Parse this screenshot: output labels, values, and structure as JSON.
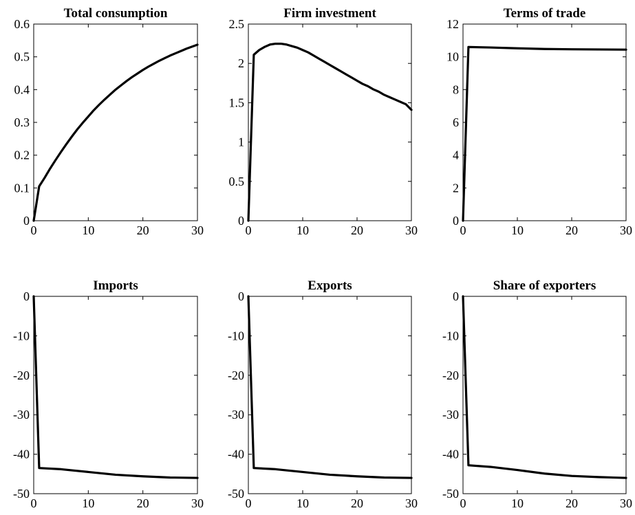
{
  "chart_data": [
    {
      "type": "line",
      "title": "Total consumption",
      "xlabel": "",
      "ylabel": "",
      "xlim": [
        0,
        30
      ],
      "ylim": [
        0,
        0.6
      ],
      "xticks": [
        0,
        10,
        20,
        30
      ],
      "yticks": [
        0,
        0.1,
        0.2,
        0.3,
        0.4,
        0.5,
        0.6
      ],
      "series": [
        {
          "x": [
            0,
            1,
            2,
            3,
            4,
            5,
            6,
            7,
            8,
            9,
            10,
            11,
            12,
            13,
            14,
            15,
            16,
            17,
            18,
            19,
            20,
            21,
            22,
            23,
            24,
            25,
            26,
            27,
            28,
            29,
            30
          ],
          "values": [
            0,
            0.105,
            0.131,
            0.159,
            0.185,
            0.21,
            0.234,
            0.257,
            0.279,
            0.299,
            0.318,
            0.337,
            0.354,
            0.37,
            0.385,
            0.4,
            0.413,
            0.426,
            0.438,
            0.449,
            0.46,
            0.47,
            0.479,
            0.488,
            0.496,
            0.504,
            0.511,
            0.518,
            0.525,
            0.531,
            0.537
          ]
        }
      ]
    },
    {
      "type": "line",
      "title": "Firm investment",
      "xlabel": "",
      "ylabel": "",
      "xlim": [
        0,
        30
      ],
      "ylim": [
        0,
        2.5
      ],
      "xticks": [
        0,
        10,
        20,
        30
      ],
      "yticks": [
        0,
        0.5,
        1,
        1.5,
        2,
        2.5
      ],
      "series": [
        {
          "x": [
            0,
            1,
            2,
            3,
            4,
            5,
            6,
            7,
            8,
            9,
            10,
            11,
            12,
            13,
            14,
            15,
            16,
            17,
            18,
            19,
            20,
            21,
            22,
            23,
            24,
            25,
            26,
            27,
            28,
            29,
            30
          ],
          "values": [
            0,
            2.11,
            2.17,
            2.21,
            2.24,
            2.25,
            2.25,
            2.24,
            2.22,
            2.2,
            2.17,
            2.14,
            2.1,
            2.06,
            2.02,
            1.98,
            1.94,
            1.9,
            1.86,
            1.82,
            1.78,
            1.74,
            1.71,
            1.67,
            1.64,
            1.6,
            1.57,
            1.54,
            1.51,
            1.48,
            1.41
          ]
        }
      ]
    },
    {
      "type": "line",
      "title": "Terms of trade",
      "xlabel": "",
      "ylabel": "",
      "xlim": [
        0,
        30
      ],
      "ylim": [
        0,
        12
      ],
      "xticks": [
        0,
        10,
        20,
        30
      ],
      "yticks": [
        0,
        2,
        4,
        6,
        8,
        10,
        12
      ],
      "series": [
        {
          "x": [
            0,
            1,
            5,
            10,
            15,
            20,
            25,
            30
          ],
          "values": [
            0,
            10.6,
            10.57,
            10.52,
            10.48,
            10.46,
            10.45,
            10.44
          ]
        }
      ]
    },
    {
      "type": "line",
      "title": "Imports",
      "xlabel": "",
      "ylabel": "",
      "xlim": [
        0,
        30
      ],
      "ylim": [
        -50,
        0
      ],
      "xticks": [
        0,
        10,
        20,
        30
      ],
      "yticks": [
        0,
        -10,
        -20,
        -30,
        -40,
        -50
      ],
      "series": [
        {
          "x": [
            0,
            1,
            5,
            10,
            15,
            20,
            25,
            30
          ],
          "values": [
            0,
            -43.5,
            -43.8,
            -44.5,
            -45.2,
            -45.6,
            -45.9,
            -46.0
          ]
        }
      ]
    },
    {
      "type": "line",
      "title": "Exports",
      "xlabel": "",
      "ylabel": "",
      "xlim": [
        0,
        30
      ],
      "ylim": [
        -50,
        0
      ],
      "xticks": [
        0,
        10,
        20,
        30
      ],
      "yticks": [
        0,
        -10,
        -20,
        -30,
        -40,
        -50
      ],
      "series": [
        {
          "x": [
            0,
            1,
            5,
            10,
            15,
            20,
            25,
            30
          ],
          "values": [
            0,
            -43.5,
            -43.8,
            -44.5,
            -45.2,
            -45.6,
            -45.9,
            -46.0
          ]
        }
      ]
    },
    {
      "type": "line",
      "title": "Share of exporters",
      "xlabel": "",
      "ylabel": "",
      "xlim": [
        0,
        30
      ],
      "ylim": [
        -50,
        0
      ],
      "xticks": [
        0,
        10,
        20,
        30
      ],
      "yticks": [
        0,
        -10,
        -20,
        -30,
        -40,
        -50
      ],
      "series": [
        {
          "x": [
            0,
            1,
            5,
            10,
            15,
            20,
            25,
            30
          ],
          "values": [
            0,
            -42.8,
            -43.2,
            -44.0,
            -44.9,
            -45.5,
            -45.8,
            -46.0
          ]
        }
      ]
    }
  ],
  "colors": {
    "line": "#000000",
    "axes": "#000000",
    "background": "#ffffff"
  }
}
